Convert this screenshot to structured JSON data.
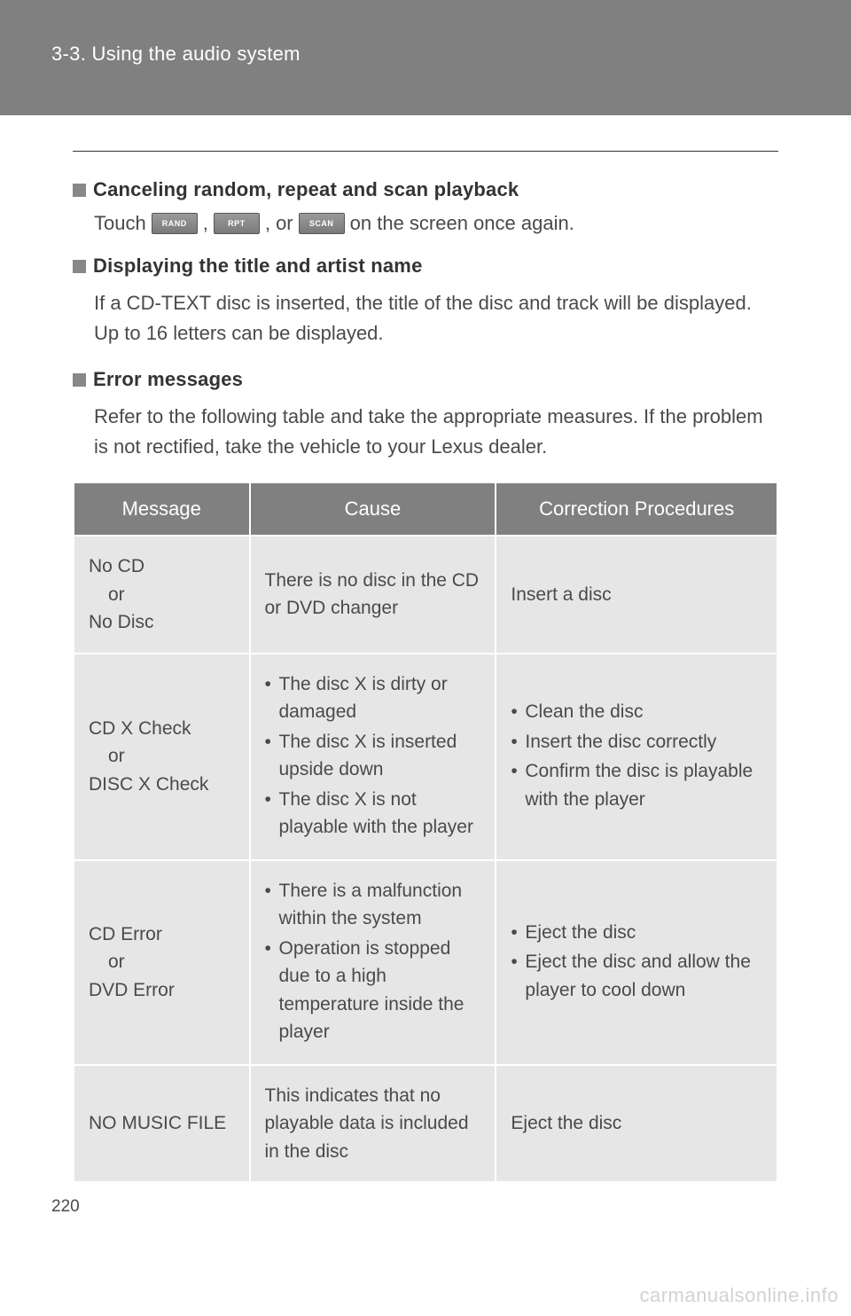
{
  "header": {
    "section_label": "3-3. Using the audio system"
  },
  "sections": {
    "cancel": {
      "title": "Canceling random, repeat and scan playback",
      "touch_prefix": "Touch",
      "btn_rand": "RAND",
      "btn_rpt": "RPT",
      "btn_scan": "SCAN",
      "comma": ",",
      "or": ", or",
      "touch_suffix": " on the screen once again."
    },
    "display": {
      "title": "Displaying the title and artist name",
      "body": "If a CD-TEXT disc is inserted, the title of the disc and track will be displayed. Up to 16 letters can be displayed."
    },
    "error": {
      "title": "Error messages",
      "body": "Refer to the following table and take the appropriate measures. If the problem is not rectified, take the vehicle to your Lexus dealer."
    }
  },
  "table": {
    "headers": {
      "message": "Message",
      "cause": "Cause",
      "correction": "Correction Procedures"
    },
    "rows": {
      "r1": {
        "msg_l1": "No CD",
        "msg_or": "or",
        "msg_l2": "No Disc",
        "cause": "There is no disc in the CD or DVD changer",
        "corr": "Insert a disc"
      },
      "r2": {
        "msg_l1": "CD X Check",
        "msg_or": "or",
        "msg_l2": "DISC X Check",
        "cause_1": "The disc X is dirty or damaged",
        "cause_2": "The disc X is inserted upside down",
        "cause_3": "The disc X is not playable with the player",
        "corr_1": "Clean the disc",
        "corr_2": "Insert the disc correctly",
        "corr_3": "Confirm the disc is playable with the player"
      },
      "r3": {
        "msg_l1": "CD Error",
        "msg_or": "or",
        "msg_l2": "DVD Error",
        "cause_1": "There is a malfunction within the system",
        "cause_2": "Operation is stopped due to a high temperature inside the player",
        "corr_1": "Eject the disc",
        "corr_2": "Eject the disc and allow the player to cool down"
      },
      "r4": {
        "msg": "NO MUSIC FILE",
        "cause": "This indicates that no playable data is included in the disc",
        "corr": "Eject the disc"
      }
    }
  },
  "page_number": "220",
  "watermark": "carmanualsonline.info"
}
